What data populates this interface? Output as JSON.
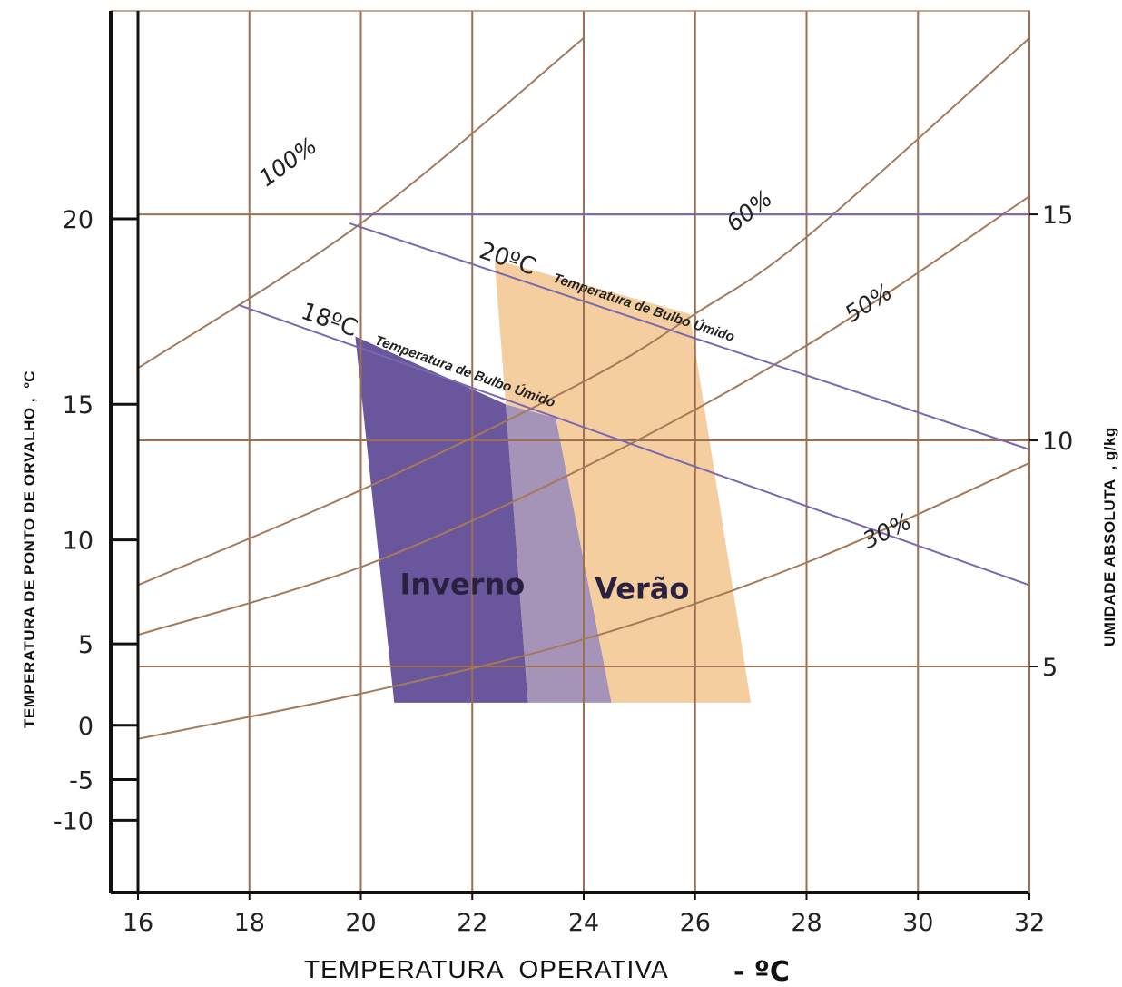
{
  "chart_data": {
    "type": "psychrometric-comfort-chart",
    "title": "",
    "xlabel": "TEMPERATURA  OPERATIVA",
    "xlabel_unit": "- ºC",
    "ylabel_left": "TEMPERATURA DE PONTO DE ORVALHO ,  ºC",
    "ylabel_right": "UMIDADE ABSOLUTA  , g/kg",
    "x_ticks": [
      "16",
      "18",
      "20",
      "22",
      "24",
      "26",
      "28",
      "30",
      "32"
    ],
    "xlim": [
      16,
      32
    ],
    "left_ticks": [
      {
        "label": "20",
        "w": 14.9
      },
      {
        "label": "15",
        "w": 10.8
      },
      {
        "label": "10",
        "w": 7.8
      },
      {
        "label": "5",
        "w": 5.5
      },
      {
        "label": "0",
        "w": 3.7
      },
      {
        "label": "-5",
        "w": 2.5
      },
      {
        "label": "-10",
        "w": 1.6
      }
    ],
    "right_ticks": [
      {
        "label": "15",
        "w": 15
      },
      {
        "label": "10",
        "w": 10
      },
      {
        "label": "5",
        "w": 5
      }
    ],
    "ylim_absolute_humidity": [
      0,
      19.5
    ],
    "horizontal_lines_w": [
      15,
      10,
      5
    ],
    "rh_curves": [
      {
        "label": "100%",
        "points": [
          [
            16,
            11.6
          ],
          [
            20,
            14.8
          ],
          [
            24,
            18.9
          ]
        ]
      },
      {
        "label": "60%",
        "points": [
          [
            16,
            6.8
          ],
          [
            20,
            8.9
          ],
          [
            24,
            11.3
          ],
          [
            26,
            12.8
          ],
          [
            28,
            14.5
          ],
          [
            32,
            18.9
          ]
        ]
      },
      {
        "label": "50%",
        "points": [
          [
            16,
            5.7
          ],
          [
            20,
            7.2
          ],
          [
            24,
            9.4
          ],
          [
            28,
            12.1
          ],
          [
            32,
            15.4
          ]
        ]
      },
      {
        "label": "30%",
        "points": [
          [
            16,
            3.4
          ],
          [
            20,
            4.4
          ],
          [
            24,
            5.6
          ],
          [
            28,
            7.3
          ],
          [
            32,
            9.5
          ]
        ]
      }
    ],
    "wet_bulb_lines": [
      {
        "temp": "20ºC",
        "text": "Temperatura de Bulbo Úmido",
        "from": [
          19.8,
          14.8
        ],
        "to": [
          32,
          9.8
        ]
      },
      {
        "temp": "18ºC",
        "text": "Temperatura de Bulbo Úmido",
        "from": [
          17.8,
          13.0
        ],
        "to": [
          32,
          6.8
        ]
      }
    ],
    "zones": [
      {
        "name": "Inverno",
        "color": "#6a569c",
        "points": [
          [
            19.9,
            12.3
          ],
          [
            20.6,
            4.2
          ],
          [
            23.0,
            4.2
          ],
          [
            22.6,
            10.8
          ]
        ]
      },
      {
        "name": "Overlap",
        "color": "#a593b8",
        "points": [
          [
            22.6,
            10.8
          ],
          [
            23.0,
            4.2
          ],
          [
            24.5,
            4.2
          ],
          [
            23.5,
            10.5
          ]
        ]
      },
      {
        "name": "Verão",
        "color": "#f5cea0",
        "points": [
          [
            22.4,
            14.0
          ],
          [
            22.6,
            10.8
          ],
          [
            23.5,
            10.5
          ],
          [
            24.5,
            4.2
          ],
          [
            27.0,
            4.2
          ],
          [
            25.9,
            12.8
          ]
        ]
      }
    ],
    "zone_labels": [
      {
        "text": "Inverno"
      },
      {
        "text": "Verão"
      }
    ],
    "colors": {
      "grid": "#9e6e50",
      "rh_curve": "#a57a5a",
      "wet_bulb": "#7a68b0",
      "axis": "#111111"
    }
  }
}
